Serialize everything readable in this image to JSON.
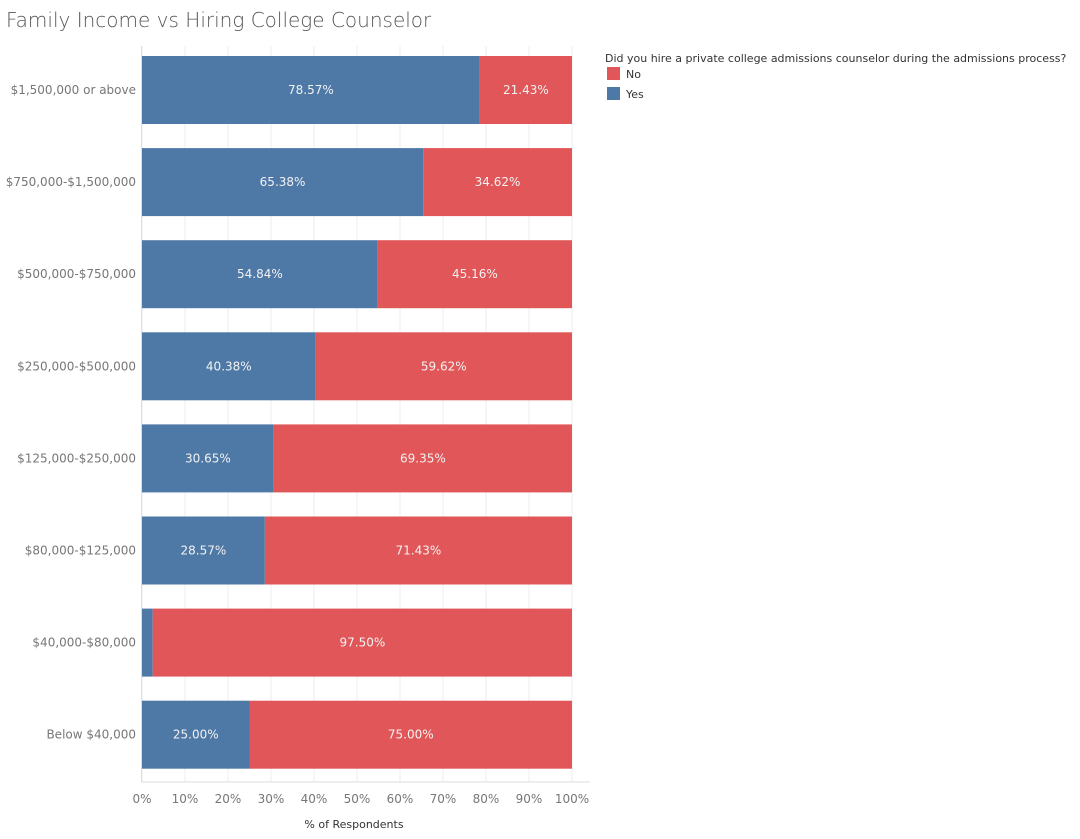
{
  "chart_data": {
    "type": "bar",
    "orientation": "horizontal",
    "stacked": true,
    "title": "Family Income vs Hiring College Counselor",
    "xlabel": "% of Respondents",
    "ylabel": "",
    "xlim": [
      0,
      100
    ],
    "x_ticks": [
      "0%",
      "10%",
      "20%",
      "30%",
      "40%",
      "50%",
      "60%",
      "70%",
      "80%",
      "90%",
      "100%"
    ],
    "categories": [
      "$1,500,000 or above",
      "$750,000-$1,500,000",
      "$500,000-$750,000",
      "$250,000-$500,000",
      "$125,000-$250,000",
      "$80,000-$125,000",
      "$40,000-$80,000",
      "Below $40,000"
    ],
    "series": [
      {
        "name": "Yes",
        "color": "#4e79a7",
        "values": [
          78.57,
          65.38,
          54.84,
          40.38,
          30.65,
          28.57,
          2.5,
          25.0
        ],
        "labels": [
          "78.57%",
          "65.38%",
          "54.84%",
          "40.38%",
          "30.65%",
          "28.57%",
          "",
          "25.00%"
        ]
      },
      {
        "name": "No",
        "color": "#e15759",
        "values": [
          21.43,
          34.62,
          45.16,
          59.62,
          69.35,
          71.43,
          97.5,
          75.0
        ],
        "labels": [
          "21.43%",
          "34.62%",
          "45.16%",
          "59.62%",
          "69.35%",
          "71.43%",
          "97.50%",
          "75.00%"
        ]
      }
    ],
    "legend": {
      "title": "Did you hire a private college admissions counselor during the admissions process?",
      "entries": [
        {
          "name": "No",
          "color": "#e15759"
        },
        {
          "name": "Yes",
          "color": "#4e79a7"
        }
      ],
      "position": "top-right"
    },
    "grid": true
  }
}
